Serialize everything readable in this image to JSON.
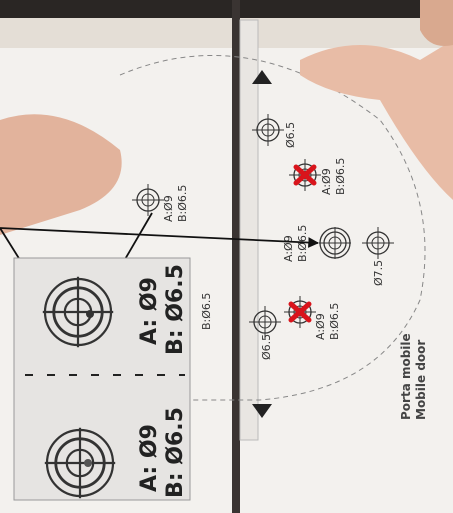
{
  "template": {
    "hole_labels": [
      {
        "a": "A:Ø9",
        "b": "B:Ø6.5"
      },
      {
        "a": "A:Ø9",
        "b": "B:Ø6.5"
      },
      {
        "a": "A:Ø9",
        "b": "B:Ø6.5"
      },
      {
        "a": "A:Ø9",
        "b": "B:Ø6.5"
      }
    ],
    "single_labels": [
      "Ø6.5",
      "Ø7.5",
      "Ø6.5",
      "B:Ø6.5"
    ],
    "door_label": [
      "Porta mobile",
      "Mobile door"
    ]
  },
  "inset": {
    "labels": [
      {
        "a": "A: Ø9",
        "b": "B: Ø6.5"
      },
      {
        "a": "A: Ø9",
        "b": "B: Ø6.5"
      }
    ]
  }
}
